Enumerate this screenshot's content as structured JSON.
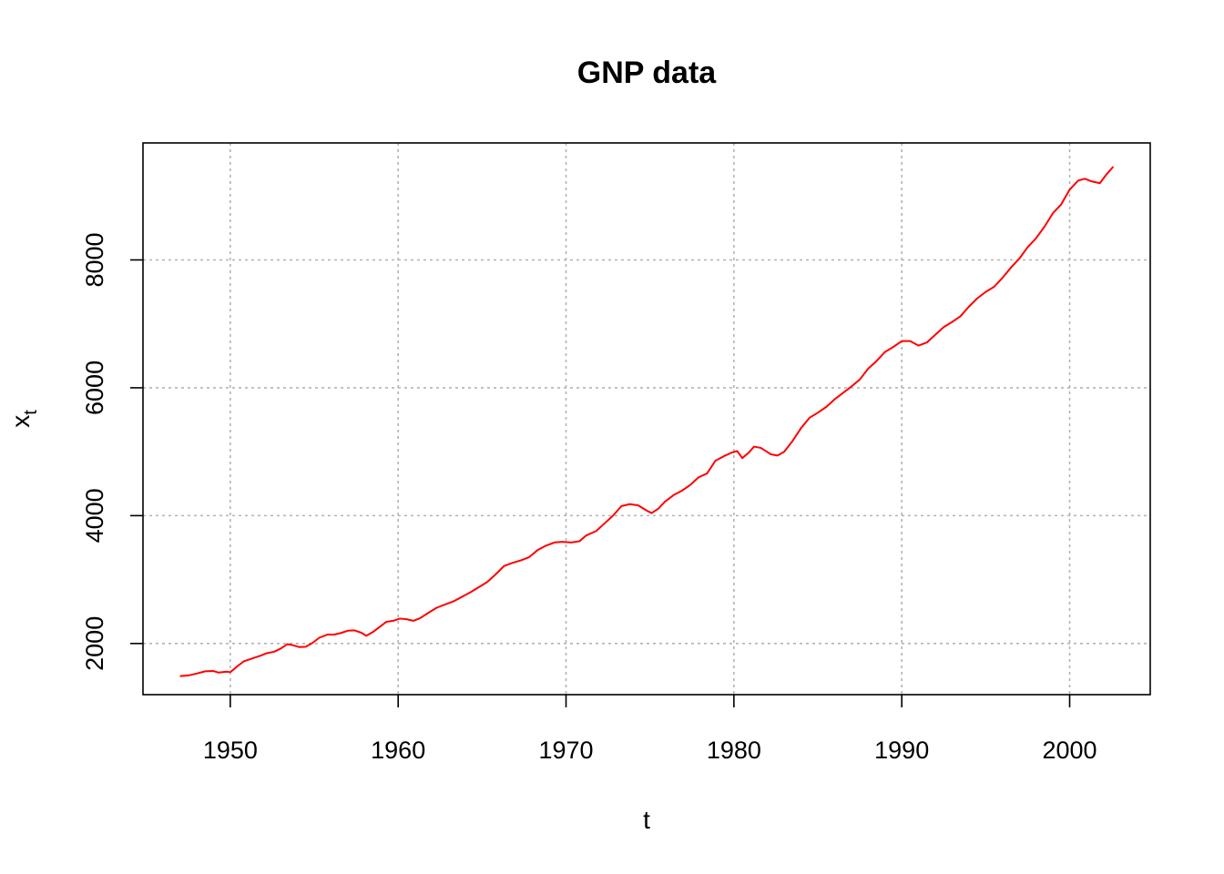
{
  "chart_data": {
    "type": "line",
    "title": "GNP data",
    "xlabel": "t",
    "ylabel_main": "x",
    "ylabel_sub": "t",
    "xlim": [
      1944.8,
      2004.8
    ],
    "ylim": [
      1200,
      9830
    ],
    "x_ticks": [
      1950,
      1960,
      1970,
      1980,
      1990,
      2000
    ],
    "x_tick_labels": [
      "1950",
      "1960",
      "1970",
      "1980",
      "1990",
      "2000"
    ],
    "y_ticks": [
      2000,
      4000,
      6000,
      8000
    ],
    "y_tick_labels": [
      "2000",
      "4000",
      "6000",
      "8000"
    ],
    "grid": true,
    "series": [
      {
        "color": "#ff0000",
        "points": [
          [
            1947.0,
            1490
          ],
          [
            1947.5,
            1500
          ],
          [
            1948.0,
            1530
          ],
          [
            1948.5,
            1565
          ],
          [
            1949.0,
            1570
          ],
          [
            1949.3,
            1545
          ],
          [
            1949.8,
            1560
          ],
          [
            1950.0,
            1550
          ],
          [
            1950.4,
            1640
          ],
          [
            1950.8,
            1720
          ],
          [
            1951.3,
            1765
          ],
          [
            1951.8,
            1810
          ],
          [
            1952.2,
            1850
          ],
          [
            1952.6,
            1870
          ],
          [
            1953.0,
            1920
          ],
          [
            1953.4,
            1990
          ],
          [
            1953.7,
            1975
          ],
          [
            1954.1,
            1945
          ],
          [
            1954.5,
            1950
          ],
          [
            1954.9,
            2010
          ],
          [
            1955.3,
            2090
          ],
          [
            1955.8,
            2140
          ],
          [
            1956.2,
            2140
          ],
          [
            1956.6,
            2165
          ],
          [
            1957.0,
            2200
          ],
          [
            1957.4,
            2205
          ],
          [
            1957.8,
            2170
          ],
          [
            1958.1,
            2120
          ],
          [
            1958.5,
            2180
          ],
          [
            1958.9,
            2260
          ],
          [
            1959.3,
            2340
          ],
          [
            1959.7,
            2355
          ],
          [
            1960.1,
            2390
          ],
          [
            1960.5,
            2380
          ],
          [
            1960.9,
            2355
          ],
          [
            1961.3,
            2395
          ],
          [
            1961.8,
            2480
          ],
          [
            1962.3,
            2560
          ],
          [
            1962.8,
            2610
          ],
          [
            1963.3,
            2660
          ],
          [
            1963.8,
            2730
          ],
          [
            1964.3,
            2800
          ],
          [
            1964.8,
            2880
          ],
          [
            1965.3,
            2960
          ],
          [
            1965.8,
            3080
          ],
          [
            1966.3,
            3210
          ],
          [
            1966.8,
            3260
          ],
          [
            1967.3,
            3300
          ],
          [
            1967.8,
            3350
          ],
          [
            1968.3,
            3460
          ],
          [
            1968.8,
            3530
          ],
          [
            1969.3,
            3580
          ],
          [
            1969.8,
            3590
          ],
          [
            1970.3,
            3580
          ],
          [
            1970.8,
            3600
          ],
          [
            1971.2,
            3690
          ],
          [
            1971.8,
            3760
          ],
          [
            1972.3,
            3880
          ],
          [
            1972.8,
            4000
          ],
          [
            1973.3,
            4150
          ],
          [
            1973.8,
            4180
          ],
          [
            1974.3,
            4160
          ],
          [
            1974.8,
            4080
          ],
          [
            1975.1,
            4040
          ],
          [
            1975.5,
            4110
          ],
          [
            1975.9,
            4220
          ],
          [
            1976.4,
            4320
          ],
          [
            1976.9,
            4390
          ],
          [
            1977.4,
            4480
          ],
          [
            1977.9,
            4600
          ],
          [
            1978.4,
            4660
          ],
          [
            1978.9,
            4860
          ],
          [
            1979.4,
            4930
          ],
          [
            1979.9,
            4990
          ],
          [
            1980.2,
            5010
          ],
          [
            1980.5,
            4900
          ],
          [
            1980.9,
            4990
          ],
          [
            1981.2,
            5080
          ],
          [
            1981.6,
            5060
          ],
          [
            1981.9,
            5010
          ],
          [
            1982.2,
            4960
          ],
          [
            1982.6,
            4940
          ],
          [
            1983.0,
            5000
          ],
          [
            1983.5,
            5170
          ],
          [
            1984.0,
            5370
          ],
          [
            1984.5,
            5530
          ],
          [
            1985.0,
            5610
          ],
          [
            1985.5,
            5700
          ],
          [
            1986.0,
            5820
          ],
          [
            1986.5,
            5920
          ],
          [
            1987.0,
            6020
          ],
          [
            1987.5,
            6130
          ],
          [
            1988.0,
            6300
          ],
          [
            1988.5,
            6420
          ],
          [
            1989.0,
            6560
          ],
          [
            1989.5,
            6640
          ],
          [
            1990.0,
            6730
          ],
          [
            1990.5,
            6730
          ],
          [
            1991.0,
            6660
          ],
          [
            1991.5,
            6710
          ],
          [
            1992.0,
            6830
          ],
          [
            1992.5,
            6950
          ],
          [
            1993.0,
            7030
          ],
          [
            1993.5,
            7120
          ],
          [
            1994.0,
            7270
          ],
          [
            1994.5,
            7400
          ],
          [
            1995.0,
            7500
          ],
          [
            1995.5,
            7580
          ],
          [
            1996.0,
            7720
          ],
          [
            1996.5,
            7880
          ],
          [
            1997.0,
            8020
          ],
          [
            1997.5,
            8200
          ],
          [
            1998.0,
            8340
          ],
          [
            1998.5,
            8520
          ],
          [
            1999.0,
            8730
          ],
          [
            1999.5,
            8870
          ],
          [
            2000.0,
            9100
          ],
          [
            2000.5,
            9240
          ],
          [
            2000.9,
            9270
          ],
          [
            2001.3,
            9230
          ],
          [
            2001.8,
            9200
          ],
          [
            2002.2,
            9340
          ],
          [
            2002.6,
            9460
          ]
        ]
      }
    ]
  }
}
